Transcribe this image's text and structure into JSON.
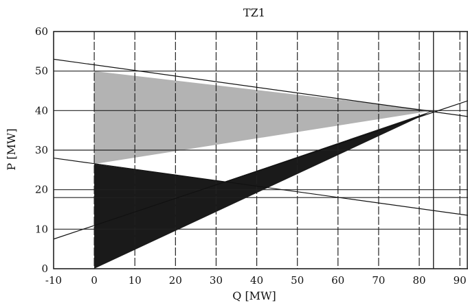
{
  "chart_data": {
    "type": "area",
    "title": "TZ1",
    "xlabel": "Q [MW]",
    "ylabel": "P [MW]",
    "xlim": [
      -10,
      92
    ],
    "ylim": [
      0,
      60
    ],
    "xticks": [
      -10,
      0,
      10,
      20,
      30,
      40,
      50,
      60,
      70,
      80,
      90
    ],
    "yticks": [
      0,
      10,
      20,
      30,
      40,
      50,
      60
    ],
    "grid": true,
    "extra_horizontal_lines": [
      18
    ],
    "extra_vertical_lines": [
      83.5
    ],
    "regions": [
      {
        "fill": "light-gray",
        "points": [
          [
            0,
            50
          ],
          [
            83.5,
            40
          ],
          [
            0,
            26.5
          ]
        ]
      },
      {
        "fill": "black",
        "points": [
          [
            0,
            0
          ],
          [
            0,
            26.5
          ],
          [
            32,
            22
          ],
          [
            83.5,
            40
          ]
        ]
      }
    ],
    "lines": [
      {
        "points": [
          [
            -10,
            53
          ],
          [
            92,
            38.5
          ]
        ]
      },
      {
        "points": [
          [
            -10,
            28
          ],
          [
            92,
            13.5
          ]
        ]
      },
      {
        "points": [
          [
            -10,
            7.5
          ],
          [
            92,
            42.5
          ]
        ]
      }
    ]
  },
  "colors": {
    "light_region": "#b3b3b3",
    "dark_region": "#1a1a1a",
    "grid": "#222222",
    "line": "#111111"
  }
}
